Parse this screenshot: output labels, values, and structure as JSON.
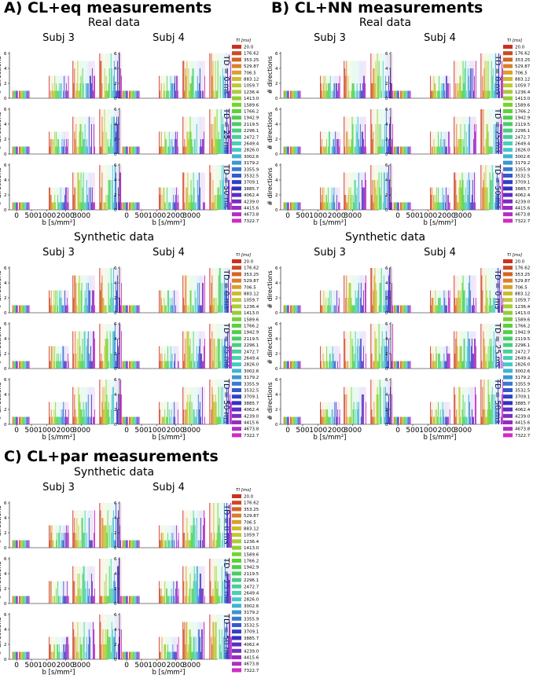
{
  "figure": {
    "panels": [
      {
        "id": "A",
        "title": "A) CL+eq measurements",
        "sections": [
          {
            "title": "Real data",
            "subjects": [
              "Subj 3",
              "Subj 4"
            ],
            "seed": 11
          },
          {
            "title": "Synthetic data",
            "subjects": [
              "Subj 3",
              "Subj 4"
            ],
            "seed": 29
          }
        ]
      },
      {
        "id": "B",
        "title": "B) CL+NN measurements",
        "sections": [
          {
            "title": "Real data",
            "subjects": [
              "Subj 3",
              "Subj 4"
            ],
            "seed": 47
          },
          {
            "title": "Synthetic data",
            "subjects": [
              "Subj 3",
              "Subj 4"
            ],
            "seed": 63
          }
        ]
      },
      {
        "id": "C",
        "title": "C) CL+par measurements",
        "sections": [
          {
            "title": "Synthetic data",
            "subjects": [
              "Subj 3",
              "Subj 4"
            ],
            "seed": 81
          }
        ]
      }
    ],
    "td_labels": [
      "TD = 0 ms",
      "TD = 25 ms",
      "TD = 50 ms"
    ],
    "y_label": "# directions",
    "x_label": "b [s/mm²]",
    "x_ticks": [
      "0",
      "500",
      "1000",
      "2000",
      "3000"
    ],
    "y_ticks": [
      "0",
      "2",
      "4",
      "6"
    ],
    "legend_title": "TI [ms]"
  },
  "chart_data": {
    "type": "bar",
    "description_source": "grouped bar charts: number of gradient directions per b-value shell, colored by inversion time TI",
    "x_categories": [
      "0",
      "500",
      "1000",
      "2000",
      "3000"
    ],
    "ylim": [
      0,
      6
    ],
    "ylabel": "# directions",
    "xlabel": "b [s/mm²]",
    "legend_title": "TI [ms]",
    "series_names": [
      "20.0",
      "176.62",
      "353.25",
      "529.87",
      "706.5",
      "883.12",
      "1059.7",
      "1236.4",
      "1413.0",
      "1589.6",
      "1766.2",
      "1942.9",
      "2119.5",
      "2296.1",
      "2472.7",
      "2649.4",
      "2826.0",
      "3002.6",
      "3179.2",
      "3355.9",
      "3532.5",
      "3709.1",
      "3885.7",
      "4062.4",
      "4239.0",
      "4415.6",
      "4673.8",
      "7322.7"
    ],
    "series_colors": [
      "#c83222",
      "#cd4a23",
      "#d26424",
      "#d7802a",
      "#d8a028",
      "#cfbb2c",
      "#bfca32",
      "#a8cf32",
      "#8fd032",
      "#74d232",
      "#5bd23a",
      "#4bd04a",
      "#45cf62",
      "#45d07c",
      "#45d098",
      "#48d0b5",
      "#44c9c9",
      "#3fb4d2",
      "#3a97d2",
      "#387ad0",
      "#345bcc",
      "#3040c8",
      "#3530c2",
      "#5a2ec3",
      "#7a2ec3",
      "#962dc3",
      "#b22dc3",
      "#cf2dc3"
    ],
    "typical_max_directions_per_shell": {
      "0": 1,
      "500": 1,
      "1000": 3,
      "2000": 5,
      "3000": 6
    }
  }
}
